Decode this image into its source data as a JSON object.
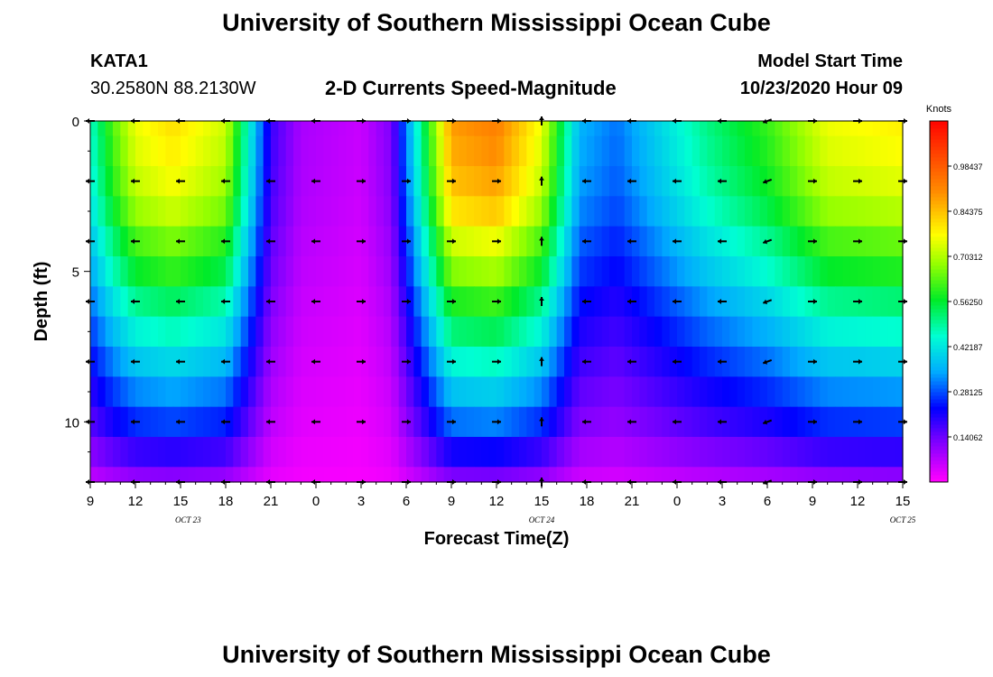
{
  "page": {
    "title_top": "University of Southern Mississippi Ocean Cube",
    "title_bottom": "University of Southern Mississippi Ocean Cube",
    "station": "KATA1",
    "coords": "30.2580N 88.2130W",
    "chart_title": "2-D Currents Speed-Magnitude",
    "model_label": "Model Start Time",
    "model_time": "10/23/2020 Hour 09"
  },
  "chart_data": {
    "type": "heatmap",
    "title": "2-D Currents Speed-Magnitude",
    "xlabel": "Forecast Time(Z)",
    "ylabel": "Depth (ft)",
    "x_ticks": [
      "9",
      "12",
      "15",
      "18",
      "21",
      "0",
      "3",
      "6",
      "9",
      "12",
      "15",
      "18",
      "21",
      "0",
      "3",
      "6",
      "9",
      "12",
      "15"
    ],
    "date_labels": [
      {
        "label": "OCT 23",
        "hour_index": 6.5
      },
      {
        "label": "OCT 24",
        "hour_index": 30
      },
      {
        "label": "OCT 25",
        "hour_index": 54
      }
    ],
    "x_range_hours": [
      0,
      54
    ],
    "y_ticks": [
      0,
      5,
      10
    ],
    "y_range": [
      0,
      12
    ],
    "y_inverted": true,
    "colorbar": {
      "title": "Knots",
      "range": [
        0,
        1.125
      ],
      "tick_labels": [
        "0.14062",
        "0.28125",
        "0.42187",
        "0.56250",
        "0.70312",
        "0.84375",
        "0.98437"
      ],
      "tick_values": [
        0.14062,
        0.28125,
        0.42187,
        0.5625,
        0.70312,
        0.84375,
        0.98437
      ]
    },
    "depth_levels": [
      0,
      1,
      2,
      3,
      4,
      5,
      6,
      7,
      8,
      9,
      10,
      11,
      12
    ],
    "surface_speed_knots": [
      {
        "hour": 0,
        "v": 0.45
      },
      {
        "hour": 1.5,
        "v": 0.62
      },
      {
        "hour": 3,
        "v": 0.75
      },
      {
        "hour": 5.5,
        "v": 0.8
      },
      {
        "hour": 9,
        "v": 0.72
      },
      {
        "hour": 10.5,
        "v": 0.45
      },
      {
        "hour": 12,
        "v": 0.18
      },
      {
        "hour": 14,
        "v": 0.08
      },
      {
        "hour": 18,
        "v": 0.05
      },
      {
        "hour": 20,
        "v": 0.12
      },
      {
        "hour": 21.5,
        "v": 0.4
      },
      {
        "hour": 24,
        "v": 0.88
      },
      {
        "hour": 27,
        "v": 0.92
      },
      {
        "hour": 30,
        "v": 0.75
      },
      {
        "hour": 32.5,
        "v": 0.35
      },
      {
        "hour": 35,
        "v": 0.3
      },
      {
        "hour": 38,
        "v": 0.4
      },
      {
        "hour": 41,
        "v": 0.5
      },
      {
        "hour": 45,
        "v": 0.6
      },
      {
        "hour": 49,
        "v": 0.75
      },
      {
        "hour": 54,
        "v": 0.78
      }
    ],
    "depth_factor": [
      1.0,
      0.98,
      0.95,
      0.9,
      0.82,
      0.75,
      0.66,
      0.58,
      0.5,
      0.42,
      0.34,
      0.24,
      0.14
    ],
    "vectors": {
      "depths": [
        0,
        2,
        4,
        6,
        8,
        10,
        12
      ],
      "hours": [
        0,
        3,
        6,
        9,
        12,
        15,
        18,
        21,
        24,
        27,
        30,
        33,
        36,
        39,
        42,
        45,
        48,
        51,
        54
      ],
      "direction_pattern_deg": [
        180,
        180,
        180,
        180,
        180,
        180,
        0,
        0,
        0,
        0,
        90,
        180,
        180,
        180,
        180,
        200,
        0,
        0,
        0
      ]
    }
  }
}
